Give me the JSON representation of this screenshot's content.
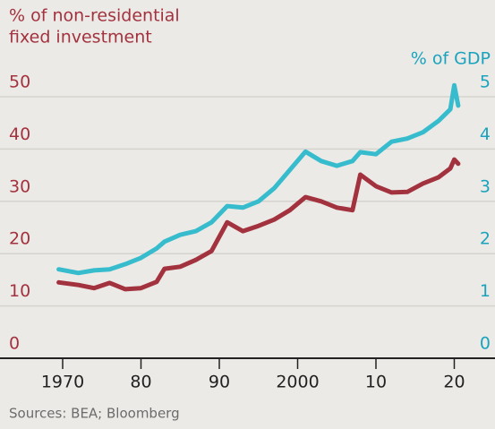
{
  "chart_data": {
    "type": "line",
    "ylabel": [
      "% of non-residential",
      "fixed investment"
    ],
    "y2label": "% of GDP",
    "source": "Sources: BEA; Bloomberg",
    "x": [
      1969.5,
      1972,
      1974,
      1976,
      1978,
      1980,
      1982,
      1983,
      1985,
      1987,
      1989,
      1991,
      1993,
      1995,
      1997,
      1999,
      2001,
      2003,
      2005,
      2007,
      2008,
      2010,
      2012,
      2014,
      2016,
      2018,
      2019.5,
      2020,
      2020.5
    ],
    "series": [
      {
        "color": "#a3323f",
        "axis": "y",
        "values": [
          14.5,
          14,
          13.4,
          14.4,
          13.2,
          13.4,
          14.6,
          17.1,
          17.5,
          18.8,
          20.5,
          26,
          24.3,
          25.3,
          26.5,
          28.3,
          30.8,
          30,
          28.8,
          28.3,
          35.1,
          32.9,
          31.7,
          31.8,
          33.4,
          34.6,
          36.3,
          38,
          37.2
        ]
      },
      {
        "color": "#36bccd",
        "axis": "y2",
        "values": [
          1.7,
          1.63,
          1.68,
          1.7,
          1.8,
          1.92,
          2.1,
          2.23,
          2.36,
          2.43,
          2.6,
          2.91,
          2.88,
          3.0,
          3.25,
          3.6,
          3.95,
          3.77,
          3.68,
          3.77,
          3.94,
          3.9,
          4.14,
          4.2,
          4.32,
          4.54,
          4.76,
          5.22,
          4.83
        ]
      }
    ],
    "xlim": [
      1967.5,
      2023.5
    ],
    "xticks": [
      1970,
      {
        "value": 1980,
        "label": "80"
      },
      {
        "value": 1990,
        "label": "90"
      },
      2000,
      {
        "value": 2010,
        "label": "10"
      },
      {
        "value": 2020,
        "label": "20"
      }
    ],
    "ylim": [
      0,
      50
    ],
    "yticks": [
      0,
      10,
      20,
      30,
      40,
      50
    ],
    "y2lim": [
      0,
      5
    ],
    "y2ticks": [
      0,
      1,
      2,
      3,
      4,
      5
    ],
    "ytick_color": "#a3323f",
    "y2tick_color": "#1aa3bd",
    "grid": true
  }
}
